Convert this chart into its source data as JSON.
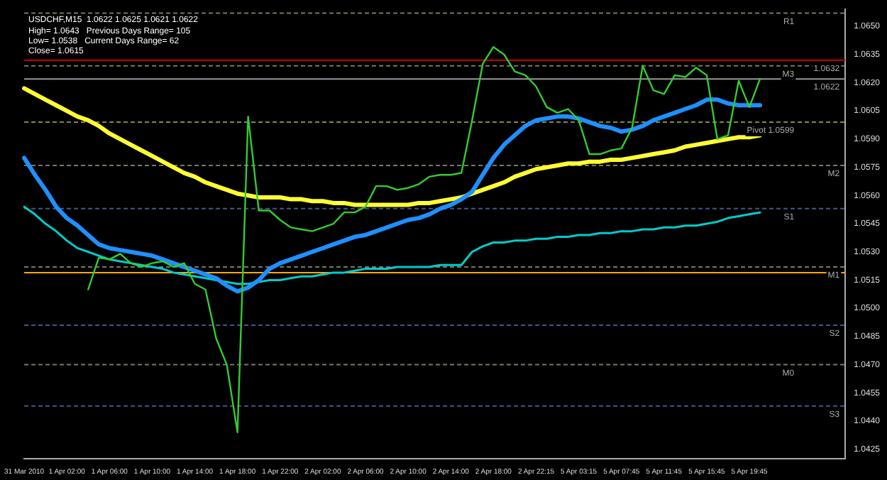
{
  "chart_data": {
    "type": "line",
    "title": "USDCHF,M15  1.0622 1.0625 1.0621 1.0622",
    "annotations": [
      "High= 1.0643   Previous Days Range= 105",
      "Low= 1.0538   Current Days Range= 62",
      "Close= 1.0615"
    ],
    "categories": [
      "31 Mar 2010",
      null,
      null,
      null,
      "1 Apr 02:00",
      null,
      null,
      null,
      "1 Apr 06:00",
      null,
      null,
      null,
      "1 Apr 10:00",
      null,
      null,
      null,
      "1 Apr 14:00",
      null,
      null,
      null,
      "1 Apr 18:00",
      null,
      null,
      null,
      "1 Apr 22:00",
      null,
      null,
      null,
      "2 Apr 02:00",
      null,
      null,
      null,
      "2 Apr 06:00",
      null,
      null,
      null,
      "2 Apr 10:00",
      null,
      null,
      null,
      "2 Apr 14:00",
      null,
      null,
      null,
      "2 Apr 18:00",
      null,
      null,
      null,
      "2 Apr 22:15",
      null,
      null,
      null,
      "5 Apr 03:15",
      null,
      null,
      null,
      "5 Apr 07:45",
      null,
      null,
      null,
      "5 Apr 11:45",
      null,
      null,
      null,
      "5 Apr 15:45",
      null,
      null,
      null,
      "5 Apr 19:45",
      null,
      null,
      null,
      null,
      null,
      null,
      null,
      null,
      null
    ],
    "series": [
      {
        "type": "line",
        "color": "#33cc33",
        "values": [
          null,
          null,
          null,
          null,
          null,
          null,
          1.051,
          1.0527,
          1.0526,
          1.0529,
          1.0524,
          1.0522,
          1.0524,
          1.0525,
          1.0522,
          1.0524,
          1.0513,
          1.051,
          1.0484,
          1.047,
          1.0434,
          1.0602,
          1.0552,
          1.0552,
          1.0547,
          1.0543,
          1.0542,
          1.0541,
          1.0543,
          1.0545,
          1.0551,
          1.0551,
          1.0554,
          1.0565,
          1.0565,
          1.0563,
          1.0564,
          1.0566,
          1.057,
          1.0571,
          1.0571,
          1.0572,
          1.06,
          1.063,
          1.0639,
          1.0635,
          1.0626,
          1.0624,
          1.0618,
          1.0607,
          1.0604,
          1.0606,
          1.06,
          1.0582,
          1.0582,
          1.0584,
          1.0585,
          1.0596,
          1.0629,
          1.0616,
          1.0614,
          1.0624,
          1.0623,
          1.0628,
          1.0624,
          1.059,
          1.0592,
          1.0621,
          1.0607,
          1.0622,
          null,
          null,
          null,
          null,
          null,
          null,
          null,
          null
        ]
      },
      {
        "type": "line",
        "color": "#1e90ff",
        "values": [
          1.058,
          1.0571,
          1.0563,
          1.0554,
          1.0548,
          1.0544,
          1.0539,
          1.0534,
          1.0532,
          1.0531,
          1.053,
          1.0529,
          1.0528,
          1.0526,
          1.0524,
          1.0522,
          1.052,
          1.0518,
          1.0516,
          1.0512,
          1.0509,
          1.0511,
          1.0515,
          1.0521,
          1.0524,
          1.0526,
          1.0528,
          1.053,
          1.0532,
          1.0534,
          1.0536,
          1.0538,
          1.0539,
          1.0541,
          1.0543,
          1.0545,
          1.0547,
          1.0548,
          1.055,
          1.0553,
          1.0555,
          1.0558,
          1.0562,
          1.0571,
          1.058,
          1.0587,
          1.0592,
          1.0597,
          1.06,
          1.0601,
          1.0602,
          1.0602,
          1.0601,
          1.0599,
          1.0597,
          1.0596,
          1.0594,
          1.0595,
          1.0597,
          1.06,
          1.0602,
          1.0604,
          1.0606,
          1.0608,
          1.0611,
          1.0611,
          1.0609,
          1.0608,
          1.0608,
          1.0608,
          null,
          null,
          null,
          null,
          null,
          null,
          null,
          null
        ]
      },
      {
        "type": "line",
        "color": "#ffff33",
        "values": [
          1.0617,
          1.0614,
          1.0611,
          1.0608,
          1.0605,
          1.0602,
          1.06,
          1.0597,
          1.0593,
          1.059,
          1.0587,
          1.0584,
          1.0581,
          1.0578,
          1.0575,
          1.0572,
          1.057,
          1.0567,
          1.0565,
          1.0563,
          1.0561,
          1.056,
          1.0559,
          1.0559,
          1.0559,
          1.0558,
          1.0558,
          1.0557,
          1.0557,
          1.0556,
          1.0556,
          1.0555,
          1.0555,
          1.0555,
          1.0555,
          1.0555,
          1.0555,
          1.0556,
          1.0556,
          1.0557,
          1.0558,
          1.0559,
          1.0561,
          1.0563,
          1.0565,
          1.0567,
          1.057,
          1.0572,
          1.0574,
          1.0575,
          1.0576,
          1.0577,
          1.0577,
          1.0578,
          1.0578,
          1.0579,
          1.0579,
          1.058,
          1.0581,
          1.0582,
          1.0583,
          1.0584,
          1.0586,
          1.0587,
          1.0588,
          1.0589,
          1.059,
          1.0591,
          1.0591,
          1.0592,
          null,
          null,
          null,
          null,
          null,
          null,
          null,
          null
        ]
      },
      {
        "type": "line",
        "color": "#00cccc",
        "values": [
          1.0554,
          1.055,
          1.0545,
          1.0541,
          1.0536,
          1.0532,
          1.053,
          1.0528,
          1.0526,
          1.0525,
          1.0524,
          1.0523,
          1.0522,
          1.0521,
          1.0519,
          1.0518,
          1.0517,
          1.0516,
          1.0515,
          1.0514,
          1.0513,
          1.0513,
          1.0514,
          1.0515,
          1.0515,
          1.0516,
          1.0517,
          1.0517,
          1.0518,
          1.0519,
          1.0519,
          1.052,
          1.0521,
          1.0521,
          1.0521,
          1.0522,
          1.0522,
          1.0522,
          1.0522,
          1.0523,
          1.0523,
          1.0523,
          1.053,
          1.0533,
          1.0535,
          1.0535,
          1.0536,
          1.0536,
          1.0537,
          1.0537,
          1.0538,
          1.0538,
          1.0539,
          1.0539,
          1.054,
          1.054,
          1.0541,
          1.0541,
          1.0542,
          1.0542,
          1.0543,
          1.0543,
          1.0544,
          1.0544,
          1.0545,
          1.0546,
          1.0548,
          1.0549,
          1.055,
          1.0551,
          null,
          null,
          null,
          null,
          null,
          null,
          null,
          null
        ]
      }
    ],
    "ylim": [
      1.042,
      1.0659
    ],
    "yticks": [
      {
        "value": 1.0425,
        "label": "1.0425"
      },
      {
        "value": 1.044,
        "label": "1.0440"
      },
      {
        "value": 1.0455,
        "label": "1.0455"
      },
      {
        "value": 1.047,
        "label": "1.0470"
      },
      {
        "value": 1.0485,
        "label": "1.0485"
      },
      {
        "value": 1.05,
        "label": "1.0500"
      },
      {
        "value": 1.0515,
        "label": "1.0515"
      },
      {
        "value": 1.053,
        "label": "1.0530"
      },
      {
        "value": 1.0545,
        "label": "1.0545"
      },
      {
        "value": 1.056,
        "label": "1.0560"
      },
      {
        "value": 1.0575,
        "label": "1.0575"
      },
      {
        "value": 1.059,
        "label": "1.0590"
      },
      {
        "value": 1.0605,
        "label": "1.0605"
      },
      {
        "value": 1.062,
        "label": "1.0620"
      },
      {
        "value": 1.0635,
        "label": "1.0635"
      },
      {
        "value": 1.065,
        "label": "1.0650"
      }
    ],
    "ref_lines": [
      {
        "axis": "y",
        "value": 1.0657,
        "label": "R1",
        "color": "#777766",
        "line_style": "dashed"
      },
      {
        "axis": "y",
        "value": 1.0632,
        "label": "1.0632",
        "color": "#cc0000",
        "line_style": "solid"
      },
      {
        "axis": "y",
        "value": 1.0629,
        "label": "M3",
        "color": "#777766",
        "line_style": "dashed"
      },
      {
        "axis": "y",
        "value": 1.0622,
        "label": "1.0622",
        "color": "#999999",
        "line_style": "solid"
      },
      {
        "axis": "y",
        "value": 1.0599,
        "label": "Pivot 1.0599",
        "color": "#888844",
        "line_style": "dashed"
      },
      {
        "axis": "y",
        "value": 1.0576,
        "label": "M2",
        "color": "#777766",
        "line_style": "dashed"
      },
      {
        "axis": "y",
        "value": 1.0553,
        "label": "S1",
        "color": "#445588",
        "line_style": "dashed"
      },
      {
        "axis": "y",
        "value": 1.0522,
        "label": "M1",
        "color": "#777766",
        "line_style": "dashed"
      },
      {
        "axis": "y",
        "value": 1.0519,
        "color": "#ffaa00",
        "line_style": "solid"
      },
      {
        "axis": "y",
        "value": 1.0491,
        "label": "S2",
        "color": "#445588",
        "line_style": "dashed"
      },
      {
        "axis": "y",
        "value": 1.047,
        "label": "M0",
        "color": "#777766",
        "line_style": "dashed"
      },
      {
        "axis": "y",
        "value": 1.0448,
        "label": "S3",
        "color": "#445588",
        "line_style": "dashed"
      }
    ],
    "grid": false,
    "legend": false,
    "marker": "none",
    "line_style": "solid"
  }
}
